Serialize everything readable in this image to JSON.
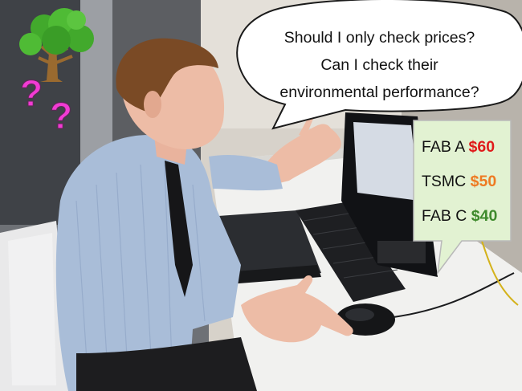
{
  "speech": {
    "line1": "Should I only check prices?",
    "line2": "Can I check their",
    "line3": "environmental performance?"
  },
  "prices": [
    {
      "name": "FAB A",
      "price": "$60",
      "color": "#e01b1b"
    },
    {
      "name": "TSMC",
      "price": "$50",
      "color": "#ee7a22"
    },
    {
      "name": "FAB C",
      "price": "$40",
      "color": "#3e8a2c"
    }
  ],
  "question_mark": "?",
  "colors": {
    "question_mark": "#f23bd3",
    "price_box": "#e2f2d2",
    "tree_foliage": "#42a92c",
    "tree_trunk": "#9a6a2f"
  },
  "icons": [
    "tree-icon"
  ]
}
